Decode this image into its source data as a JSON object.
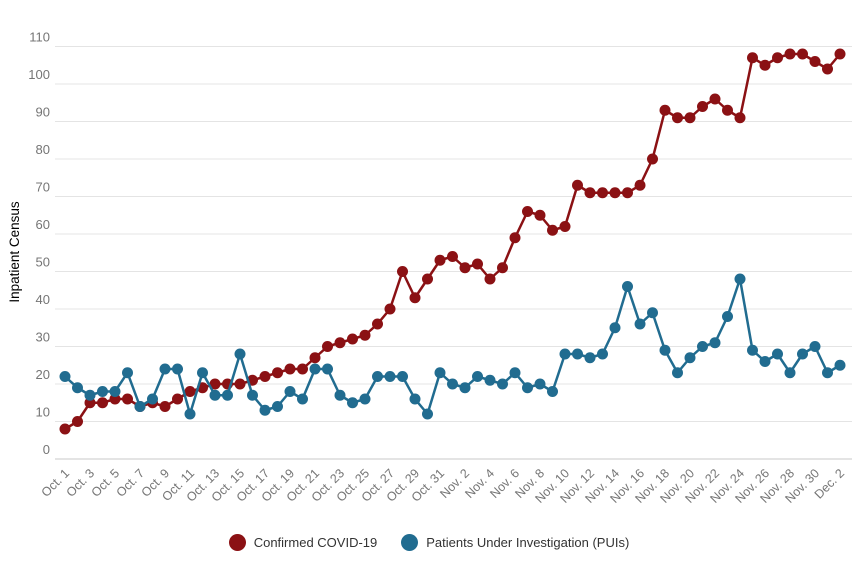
{
  "chart_data": {
    "type": "line",
    "title": "",
    "ylabel": "Inpatient Census",
    "xlabel": "",
    "ylim": [
      0,
      110
    ],
    "yticks": [
      0,
      10,
      20,
      30,
      40,
      50,
      60,
      70,
      80,
      90,
      100,
      110
    ],
    "x_tick_interval": 2,
    "grid": true,
    "legend_position": "bottom-center",
    "categories": [
      "Oct. 1",
      "Oct. 2",
      "Oct. 3",
      "Oct. 4",
      "Oct. 5",
      "Oct. 6",
      "Oct. 7",
      "Oct. 8",
      "Oct. 9",
      "Oct. 10",
      "Oct. 11",
      "Oct. 12",
      "Oct. 13",
      "Oct. 14",
      "Oct. 15",
      "Oct. 16",
      "Oct. 17",
      "Oct. 18",
      "Oct. 19",
      "Oct. 20",
      "Oct. 21",
      "Oct. 22",
      "Oct. 23",
      "Oct. 24",
      "Oct. 25",
      "Oct. 26",
      "Oct. 27",
      "Oct. 28",
      "Oct. 29",
      "Oct. 30",
      "Oct. 31",
      "Nov. 1",
      "Nov. 2",
      "Nov. 3",
      "Nov. 4",
      "Nov. 5",
      "Nov. 6",
      "Nov. 7",
      "Nov. 8",
      "Nov. 9",
      "Nov. 10",
      "Nov. 11",
      "Nov. 12",
      "Nov. 13",
      "Nov. 14",
      "Nov. 15",
      "Nov. 16",
      "Nov. 17",
      "Nov. 18",
      "Nov. 19",
      "Nov. 20",
      "Nov. 21",
      "Nov. 22",
      "Nov. 23",
      "Nov. 24",
      "Nov. 25",
      "Nov. 26",
      "Nov. 27",
      "Nov. 28",
      "Nov. 29",
      "Nov. 30",
      "Dec. 1",
      "Dec. 2"
    ],
    "series": [
      {
        "name": "Confirmed COVID-19",
        "color": "#8B1114",
        "marker": "circle",
        "values": [
          8,
          10,
          15,
          15,
          16,
          16,
          14,
          15,
          14,
          16,
          18,
          19,
          20,
          20,
          20,
          21,
          22,
          23,
          24,
          24,
          27,
          30,
          31,
          32,
          33,
          36,
          40,
          50,
          43,
          48,
          53,
          54,
          51,
          52,
          48,
          51,
          59,
          66,
          65,
          61,
          62,
          73,
          71,
          71,
          71,
          71,
          73,
          80,
          93,
          91,
          91,
          94,
          96,
          93,
          91,
          107,
          105,
          107,
          108,
          108,
          106,
          104,
          108
        ]
      },
      {
        "name": "Patients Under Investigation (PUIs)",
        "color": "#216C90",
        "marker": "circle",
        "values": [
          22,
          19,
          17,
          18,
          18,
          23,
          14,
          16,
          24,
          24,
          12,
          23,
          17,
          17,
          28,
          17,
          13,
          14,
          18,
          16,
          24,
          24,
          17,
          15,
          16,
          22,
          22,
          22,
          16,
          12,
          23,
          20,
          19,
          22,
          21,
          20,
          23,
          19,
          20,
          18,
          28,
          28,
          27,
          28,
          35,
          46,
          36,
          39,
          29,
          23,
          27,
          30,
          31,
          38,
          48,
          29,
          26,
          28,
          23,
          28,
          30,
          23,
          25
        ]
      }
    ],
    "colors": {
      "axis_text": "#757575",
      "axis_title": "#555555",
      "gridline": "#E4E4E4",
      "baseline": "#C9C9C9",
      "legend_text": "#333333",
      "background": "#FFFFFF"
    }
  }
}
